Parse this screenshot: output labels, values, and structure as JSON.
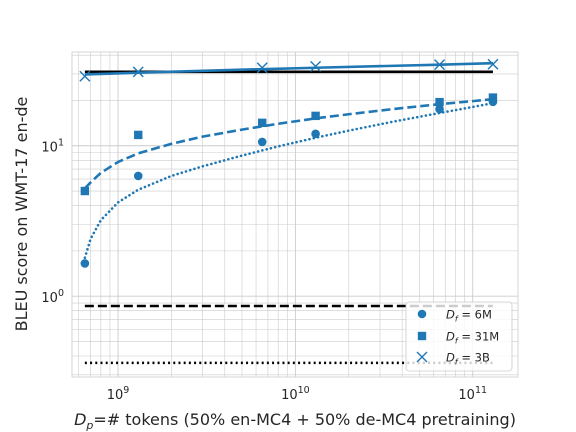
{
  "chart_data": {
    "type": "scatter",
    "xlabel": "D_p=# tokens (50% en-MC4 + 50% de-MC4 pretraining)",
    "ylabel": "BLEU score on WMT-17 en-de",
    "xscale": "log",
    "yscale": "log",
    "xlim": [
      550000000,
      180000000000
    ],
    "ylim": [
      0.29,
      42
    ],
    "xticks": [
      {
        "value": 1000000000,
        "base": "10",
        "exp": "9"
      },
      {
        "value": 10000000000,
        "base": "10",
        "exp": "10"
      },
      {
        "value": 100000000000,
        "base": "10",
        "exp": "11"
      }
    ],
    "yticks": [
      {
        "value": 1,
        "base": "10",
        "exp": "0"
      },
      {
        "value": 10,
        "base": "10",
        "exp": "1"
      }
    ],
    "grid": true,
    "legend_position": "lower-right",
    "series": [
      {
        "name": "D_f = 6M",
        "legend_label": "= 6M",
        "marker": "circle",
        "color": "#1f77b4",
        "x": [
          650000000,
          1300000000,
          6500000000,
          13000000000,
          65000000000,
          130000000000
        ],
        "y": [
          1.65,
          6.3,
          10.6,
          12.0,
          17.5,
          19.6
        ]
      },
      {
        "name": "D_f = 31M",
        "legend_label": "= 31M",
        "marker": "square",
        "color": "#1f77b4",
        "x": [
          650000000,
          1300000000,
          6500000000,
          13000000000,
          65000000000,
          130000000000
        ],
        "y": [
          5.0,
          11.8,
          14.2,
          15.8,
          19.5,
          20.9
        ]
      },
      {
        "name": "D_f = 3B",
        "legend_label": "= 3B",
        "marker": "x",
        "color": "#1f77b4",
        "x": [
          650000000,
          1300000000,
          6500000000,
          13000000000,
          65000000000,
          130000000000
        ],
        "y": [
          29.0,
          31.0,
          33.0,
          33.7,
          34.6,
          34.8
        ]
      }
    ],
    "fit_lines": [
      {
        "series": "D_f = 6M",
        "style": "dotted",
        "color": "#1f77b4",
        "x": [
          650000000,
          700000000,
          800000000,
          1000000000,
          1300000000,
          2000000000,
          3000000000,
          5000000000,
          8000000000,
          13000000000,
          20000000000,
          35000000000,
          65000000000,
          100000000000,
          130000000000
        ],
        "y": [
          1.8,
          2.4,
          3.2,
          4.2,
          5.1,
          6.3,
          7.3,
          8.6,
          9.9,
          11.3,
          12.6,
          14.4,
          16.5,
          18.1,
          19.2
        ]
      },
      {
        "series": "D_f = 31M",
        "style": "dashed",
        "color": "#1f77b4",
        "x": [
          650000000,
          700000000,
          800000000,
          1000000000,
          1300000000,
          2000000000,
          3000000000,
          5000000000,
          8000000000,
          13000000000,
          20000000000,
          35000000000,
          65000000000,
          100000000000,
          130000000000
        ],
        "y": [
          5.2,
          5.7,
          6.6,
          7.8,
          8.9,
          10.3,
          11.5,
          12.8,
          14.0,
          15.2,
          16.2,
          17.5,
          18.9,
          19.8,
          20.4
        ]
      },
      {
        "series": "D_f = 3B",
        "style": "solid",
        "color": "#1f77b4",
        "x": [
          650000000,
          1300000000,
          6500000000,
          13000000000,
          65000000000,
          130000000000
        ],
        "y": [
          29.8,
          30.6,
          32.3,
          33.0,
          34.6,
          35.4
        ]
      }
    ],
    "reference_lines": [
      {
        "style": "solid",
        "color": "#000000",
        "y": 31.0,
        "x_range": [
          650000000,
          130000000000
        ]
      },
      {
        "style": "dashed",
        "color": "#000000",
        "y": 0.86,
        "x_range": [
          650000000,
          130000000000
        ]
      },
      {
        "style": "dotted",
        "color": "#000000",
        "y": 0.36,
        "x_range": [
          650000000,
          130000000000
        ]
      }
    ]
  }
}
